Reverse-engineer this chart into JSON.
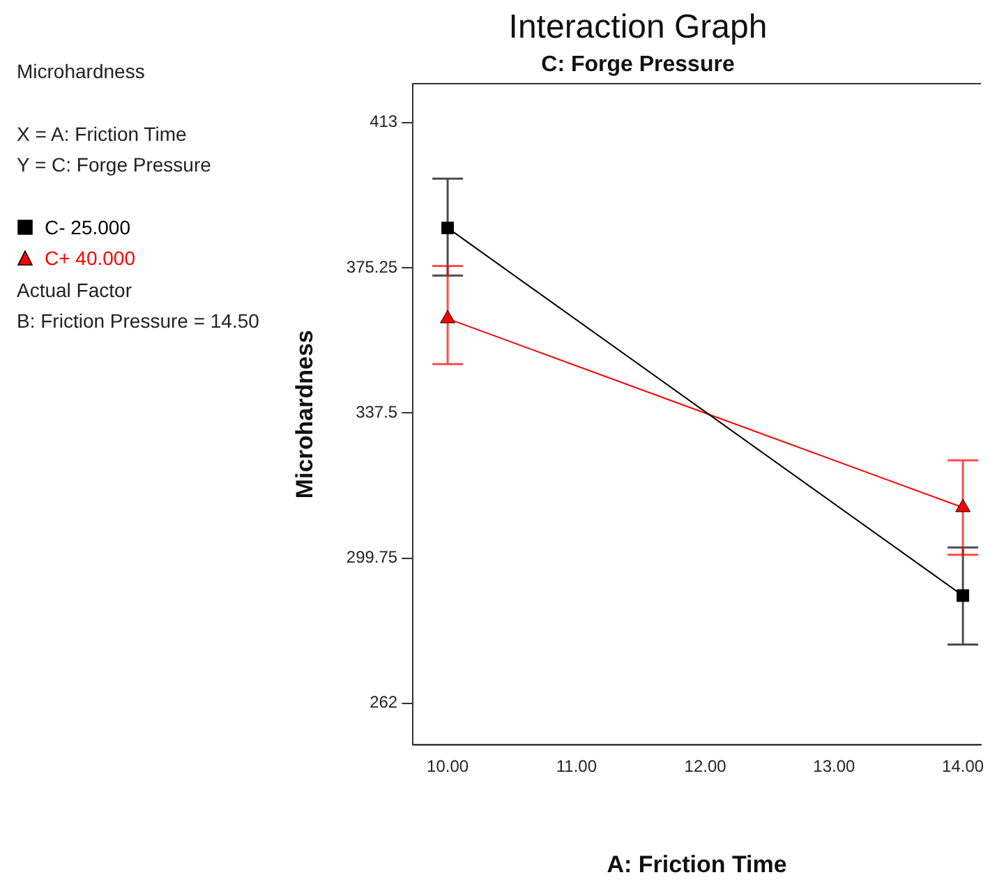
{
  "chart_data": {
    "type": "line",
    "title": "Interaction Graph",
    "subtitle": "C: Forge Pressure",
    "xlabel": "A: Friction Time",
    "ylabel": "Microhardness",
    "annotations": [
      "Microhardness",
      "X = A: Friction Time",
      "Y = C: Forge Pressure",
      "Actual Factor",
      "B: Friction Pressure = 14.50"
    ],
    "x": [
      10,
      14
    ],
    "series": [
      {
        "name": "C- 25.000",
        "color": "#000000",
        "marker": "square",
        "values": [
          385.6,
          290.0
        ],
        "errors": [
          [
            373.2,
            398.4
          ],
          [
            277.3,
            302.5
          ]
        ]
      },
      {
        "name": "C+ 40.000",
        "color": "#ff0000",
        "marker": "triangle",
        "values": [
          362.0,
          312.9
        ],
        "errors": [
          [
            350.2,
            375.7
          ],
          [
            300.6,
            325.2
          ]
        ]
      }
    ],
    "xlim": [
      9.73,
      14.14
    ],
    "xticks": [
      {
        "value": 10,
        "label": "10.00"
      },
      {
        "value": 11,
        "label": "11.00"
      },
      {
        "value": 12,
        "label": "12.00"
      },
      {
        "value": 13,
        "label": "13.00"
      },
      {
        "value": 14,
        "label": "14.00"
      }
    ],
    "ylim": [
      251.2,
      423.1
    ],
    "yticks": [
      262,
      299.75,
      337.5,
      375.25,
      413
    ],
    "grid": false,
    "legend": "left"
  }
}
